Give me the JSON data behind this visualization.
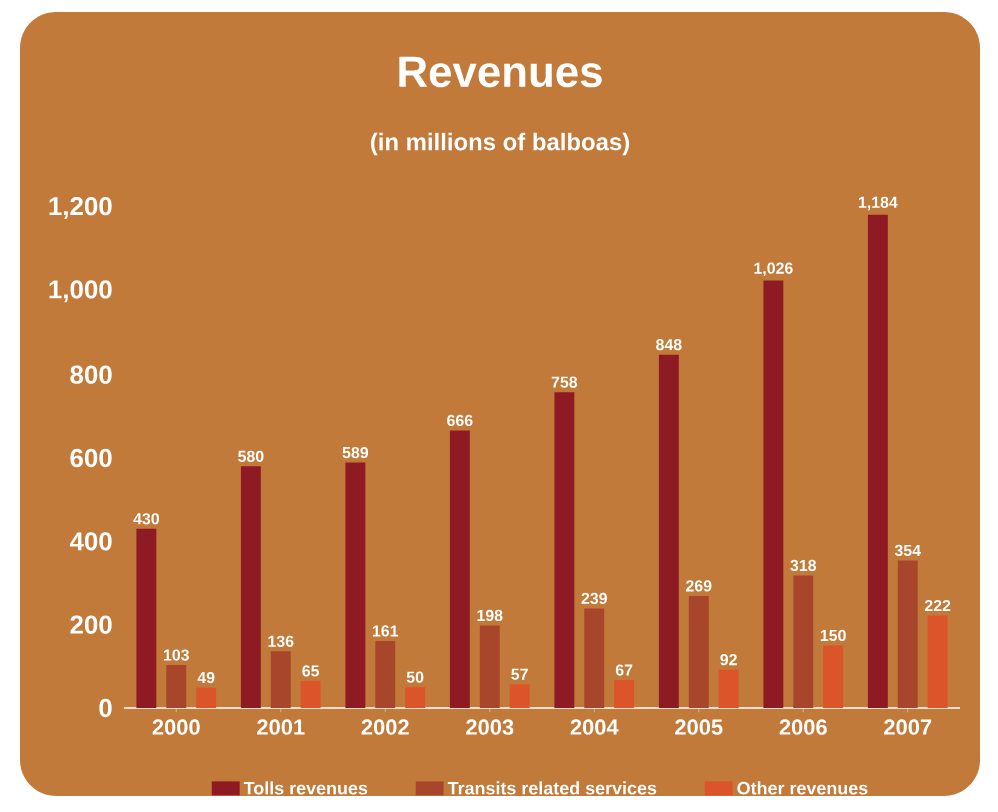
{
  "chart_data": {
    "type": "bar",
    "title": "Revenues",
    "subtitle": "(in millions of balboas)",
    "categories": [
      "2000",
      "2001",
      "2002",
      "2003",
      "2004",
      "2005",
      "2006",
      "2007"
    ],
    "series": [
      {
        "name": "Tolls revenues",
        "color": "#8e1b24",
        "values": [
          430,
          580,
          589,
          666,
          758,
          848,
          1026,
          1184
        ],
        "value_labels": [
          "430",
          "580",
          "589",
          "666",
          "758",
          "848",
          "1,026",
          "1,184"
        ]
      },
      {
        "name": "Transits related services",
        "color": "#a8462c",
        "values": [
          103,
          136,
          161,
          198,
          239,
          269,
          318,
          354
        ],
        "value_labels": [
          "103",
          "136",
          "161",
          "198",
          "239",
          "269",
          "318",
          "354"
        ]
      },
      {
        "name": "Other revenues",
        "color": "#dc5429",
        "values": [
          49,
          65,
          50,
          57,
          67,
          92,
          150,
          222
        ],
        "value_labels": [
          "49",
          "65",
          "50",
          "57",
          "67",
          "92",
          "150",
          "222"
        ]
      }
    ],
    "ylim": [
      0,
      1200
    ],
    "yticks": [
      {
        "value": 0,
        "label": "0"
      },
      {
        "value": 200,
        "label": "200"
      },
      {
        "value": 400,
        "label": "400"
      },
      {
        "value": 600,
        "label": "600"
      },
      {
        "value": 800,
        "label": "800"
      },
      {
        "value": 1000,
        "label": "1,000"
      },
      {
        "value": 1200,
        "label": "1,200"
      }
    ],
    "grid": false,
    "legend": "bottom"
  }
}
